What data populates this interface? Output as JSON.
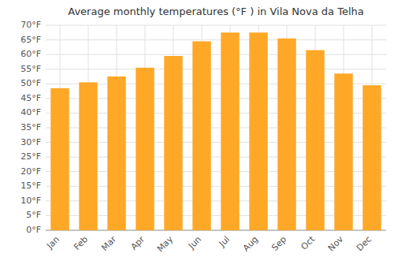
{
  "chart_data": {
    "type": "bar",
    "title": "Average monthly temperatures (°F ) in Vila Nova da Telha",
    "categories": [
      "Jan",
      "Feb",
      "Mar",
      "Apr",
      "May",
      "Jun",
      "Jul",
      "Aug",
      "Sep",
      "Oct",
      "Nov",
      "Dec"
    ],
    "values": [
      48.5,
      50.5,
      52.5,
      55.5,
      59.5,
      64.5,
      67.5,
      67.5,
      65.5,
      61.5,
      53.5,
      49.5
    ],
    "color": "#FFA726",
    "ylim": [
      0,
      70
    ],
    "yticks": [
      {
        "value": 0,
        "label": "0°F"
      },
      {
        "value": 5,
        "label": "5°F"
      },
      {
        "value": 10,
        "label": "10°F"
      },
      {
        "value": 15,
        "label": "15°F"
      },
      {
        "value": 20,
        "label": "20°F"
      },
      {
        "value": 25,
        "label": "25°F"
      },
      {
        "value": 30,
        "label": "30°F"
      },
      {
        "value": 35,
        "label": "35°F"
      },
      {
        "value": 40,
        "label": "40°F"
      },
      {
        "value": 45,
        "label": "45°F"
      },
      {
        "value": 50,
        "label": "50°F"
      },
      {
        "value": 55,
        "label": "55°F"
      },
      {
        "value": 60,
        "label": "60°F"
      },
      {
        "value": 65,
        "label": "65°F"
      },
      {
        "value": 70,
        "label": "70°F"
      }
    ],
    "grid": true
  }
}
